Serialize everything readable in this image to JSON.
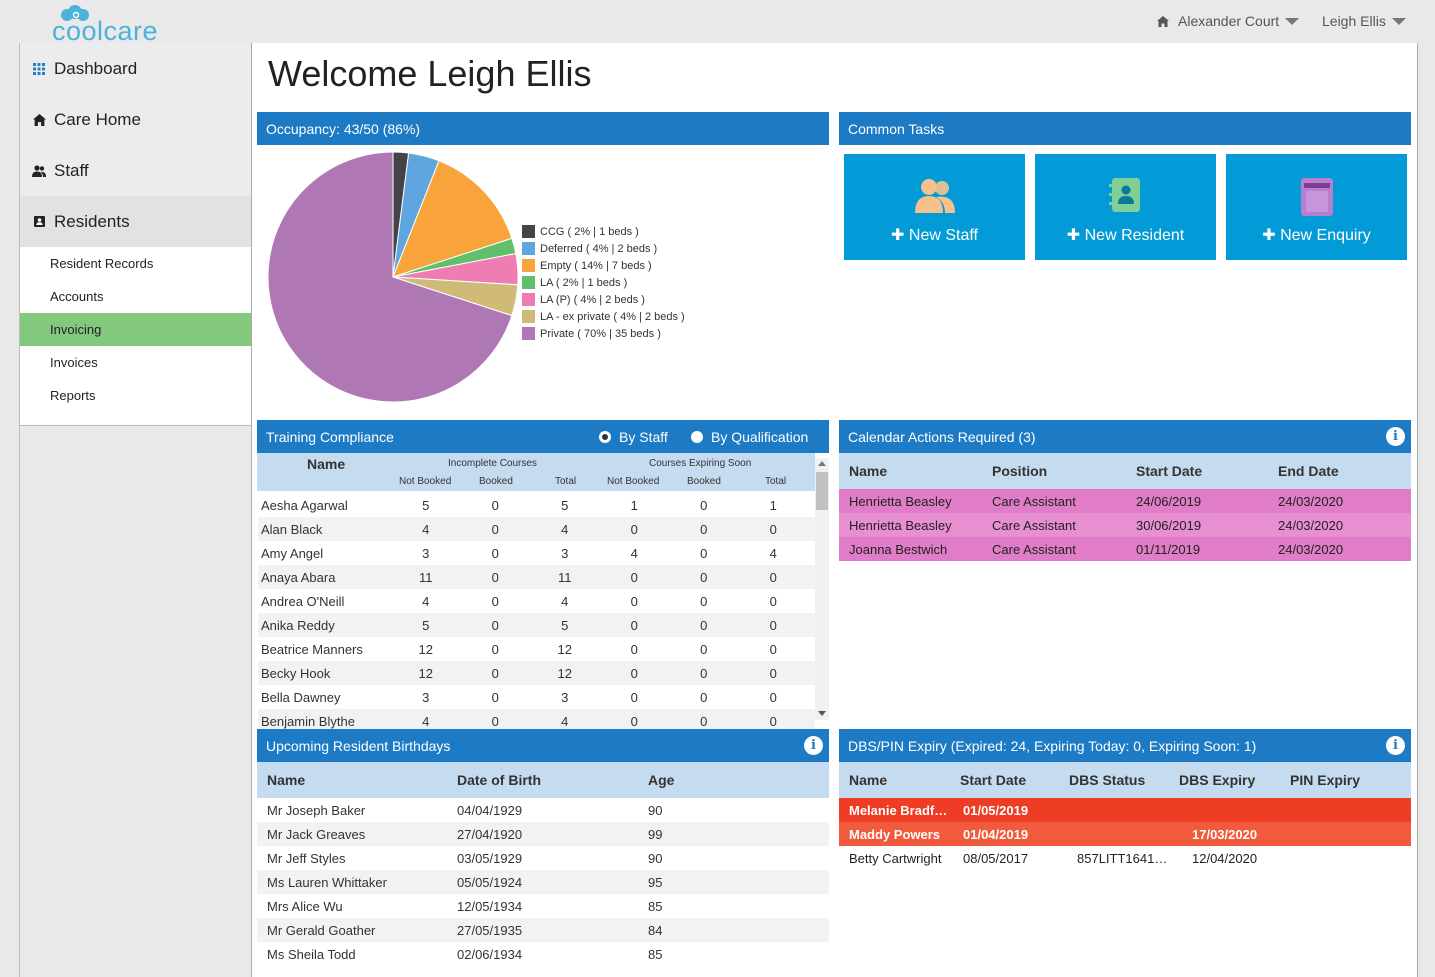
{
  "logo": {
    "text": "coolcare"
  },
  "topbar": {
    "location": "Alexander Court",
    "user": "Leigh Ellis"
  },
  "sidebar": {
    "items": [
      {
        "label": "Dashboard",
        "icon": "grid-icon"
      },
      {
        "label": "Care Home",
        "icon": "home-icon"
      },
      {
        "label": "Staff",
        "icon": "users-icon"
      },
      {
        "label": "Residents",
        "icon": "resident-icon"
      }
    ],
    "sub_items": [
      {
        "label": "Resident Records"
      },
      {
        "label": "Accounts"
      },
      {
        "label": "Invoicing",
        "selected": true
      },
      {
        "label": "Invoices"
      },
      {
        "label": "Reports"
      }
    ]
  },
  "main": {
    "welcome": "Welcome Leigh Ellis"
  },
  "occupancy": {
    "title": "Occupancy: 43/50 (86%)",
    "legend": [
      {
        "label": "CCG ( 2% | 1 beds )",
        "color": "#434348"
      },
      {
        "label": "Deferred ( 4% | 2 beds )",
        "color": "#5ea6dd"
      },
      {
        "label": "Empty ( 14% | 7 beds )",
        "color": "#f8a43a"
      },
      {
        "label": "LA ( 2% | 1 beds )",
        "color": "#5fbf6b"
      },
      {
        "label": "LA (P) ( 4% | 2 beds )",
        "color": "#f07cb4"
      },
      {
        "label": "LA - ex private ( 4% | 2 beds )",
        "color": "#cfbb77"
      },
      {
        "label": "Private ( 70% | 35 beds )",
        "color": "#b077b5"
      }
    ]
  },
  "chart_data": {
    "type": "pie",
    "categories": [
      "CCG",
      "Deferred",
      "Empty",
      "LA",
      "LA (P)",
      "LA - ex private",
      "Private"
    ],
    "values": [
      1,
      2,
      7,
      1,
      2,
      2,
      35
    ],
    "colors": [
      "#434348",
      "#5ea6dd",
      "#f8a43a",
      "#5fbf6b",
      "#f07cb4",
      "#cfbb77",
      "#b077b5"
    ],
    "title": "Occupancy: 43/50 (86%)"
  },
  "common_tasks": {
    "title": "Common Tasks",
    "tasks": [
      {
        "label": "New Staff",
        "icon": "staff-icon"
      },
      {
        "label": "New Resident",
        "icon": "contact-book-icon"
      },
      {
        "label": "New Enquiry",
        "icon": "notebook-icon"
      }
    ]
  },
  "training": {
    "title": "Training Compliance",
    "radio_staff": "By Staff",
    "radio_qualification": "By Qualification",
    "header_name": "Name",
    "group_incomplete": "Incomplete Courses",
    "group_expiring": "Courses Expiring Soon",
    "sub_headers": [
      "Not Booked",
      "Booked",
      "Total",
      "Not Booked",
      "Booked",
      "Total"
    ],
    "rows": [
      {
        "name": "Aesha Agarwal",
        "v": [
          "5",
          "0",
          "5",
          "1",
          "0",
          "1"
        ]
      },
      {
        "name": "Alan Black",
        "v": [
          "4",
          "0",
          "4",
          "0",
          "0",
          "0"
        ]
      },
      {
        "name": "Amy Angel",
        "v": [
          "3",
          "0",
          "3",
          "4",
          "0",
          "4"
        ]
      },
      {
        "name": "Anaya Abara",
        "v": [
          "11",
          "0",
          "11",
          "0",
          "0",
          "0"
        ]
      },
      {
        "name": "Andrea O'Neill",
        "v": [
          "4",
          "0",
          "4",
          "0",
          "0",
          "0"
        ]
      },
      {
        "name": "Anika Reddy",
        "v": [
          "5",
          "0",
          "5",
          "0",
          "0",
          "0"
        ]
      },
      {
        "name": "Beatrice Manners",
        "v": [
          "12",
          "0",
          "12",
          "0",
          "0",
          "0"
        ]
      },
      {
        "name": "Becky Hook",
        "v": [
          "12",
          "0",
          "12",
          "0",
          "0",
          "0"
        ]
      },
      {
        "name": "Bella Dawney",
        "v": [
          "3",
          "0",
          "3",
          "0",
          "0",
          "0"
        ]
      },
      {
        "name": "Benjamin Blythe",
        "v": [
          "4",
          "0",
          "4",
          "0",
          "0",
          "0"
        ]
      }
    ]
  },
  "calendar": {
    "title": "Calendar Actions Required (3)",
    "headers": [
      "Name",
      "Position",
      "Start Date",
      "End Date"
    ],
    "rows": [
      {
        "name": "Henrietta Beasley",
        "position": "Care Assistant",
        "start": "24/06/2019",
        "end": "24/03/2020"
      },
      {
        "name": "Henrietta Beasley",
        "position": "Care Assistant",
        "start": "30/06/2019",
        "end": "24/03/2020"
      },
      {
        "name": "Joanna Bestwich",
        "position": "Care Assistant",
        "start": "01/11/2019",
        "end": "24/03/2020"
      }
    ],
    "row_colors": [
      "#e07cc8",
      "#e88fd1",
      "#e07cc8"
    ]
  },
  "birthdays": {
    "title": "Upcoming Resident Birthdays",
    "headers": [
      "Name",
      "Date of Birth",
      "Age"
    ],
    "rows": [
      {
        "name": "Mr Joseph Baker",
        "dob": "04/04/1929",
        "age": "90"
      },
      {
        "name": "Mr Jack Greaves",
        "dob": "27/04/1920",
        "age": "99"
      },
      {
        "name": "Mr Jeff Styles",
        "dob": "03/05/1929",
        "age": "90"
      },
      {
        "name": "Ms Lauren Whittaker",
        "dob": "05/05/1924",
        "age": "95"
      },
      {
        "name": "Mrs Alice Wu",
        "dob": "12/05/1934",
        "age": "85"
      },
      {
        "name": "Mr Gerald Goather",
        "dob": "27/05/1935",
        "age": "84"
      },
      {
        "name": "Ms Sheila Todd",
        "dob": "02/06/1934",
        "age": "85"
      }
    ]
  },
  "dbs": {
    "title": "DBS/PIN Expiry (Expired: 24, Expiring Today: 0, Expiring Soon: 1)",
    "headers": [
      "Name",
      "Start Date",
      "DBS Status",
      "DBS Expiry",
      "PIN Expiry"
    ],
    "rows": [
      {
        "name": "Melanie Bradf…",
        "start": "01/05/2019",
        "status": "",
        "dbs_expiry": "",
        "pin_expiry": ""
      },
      {
        "name": "Maddy Powers",
        "start": "01/04/2019",
        "status": "",
        "dbs_expiry": "17/03/2020",
        "pin_expiry": ""
      },
      {
        "name": "Betty Cartwright",
        "start": "08/05/2017",
        "status": "857LITT1641…",
        "dbs_expiry": "12/04/2020",
        "pin_expiry": ""
      }
    ],
    "row_colors": [
      "#ee3d24",
      "#f15a3c",
      "#ffffff"
    ]
  }
}
